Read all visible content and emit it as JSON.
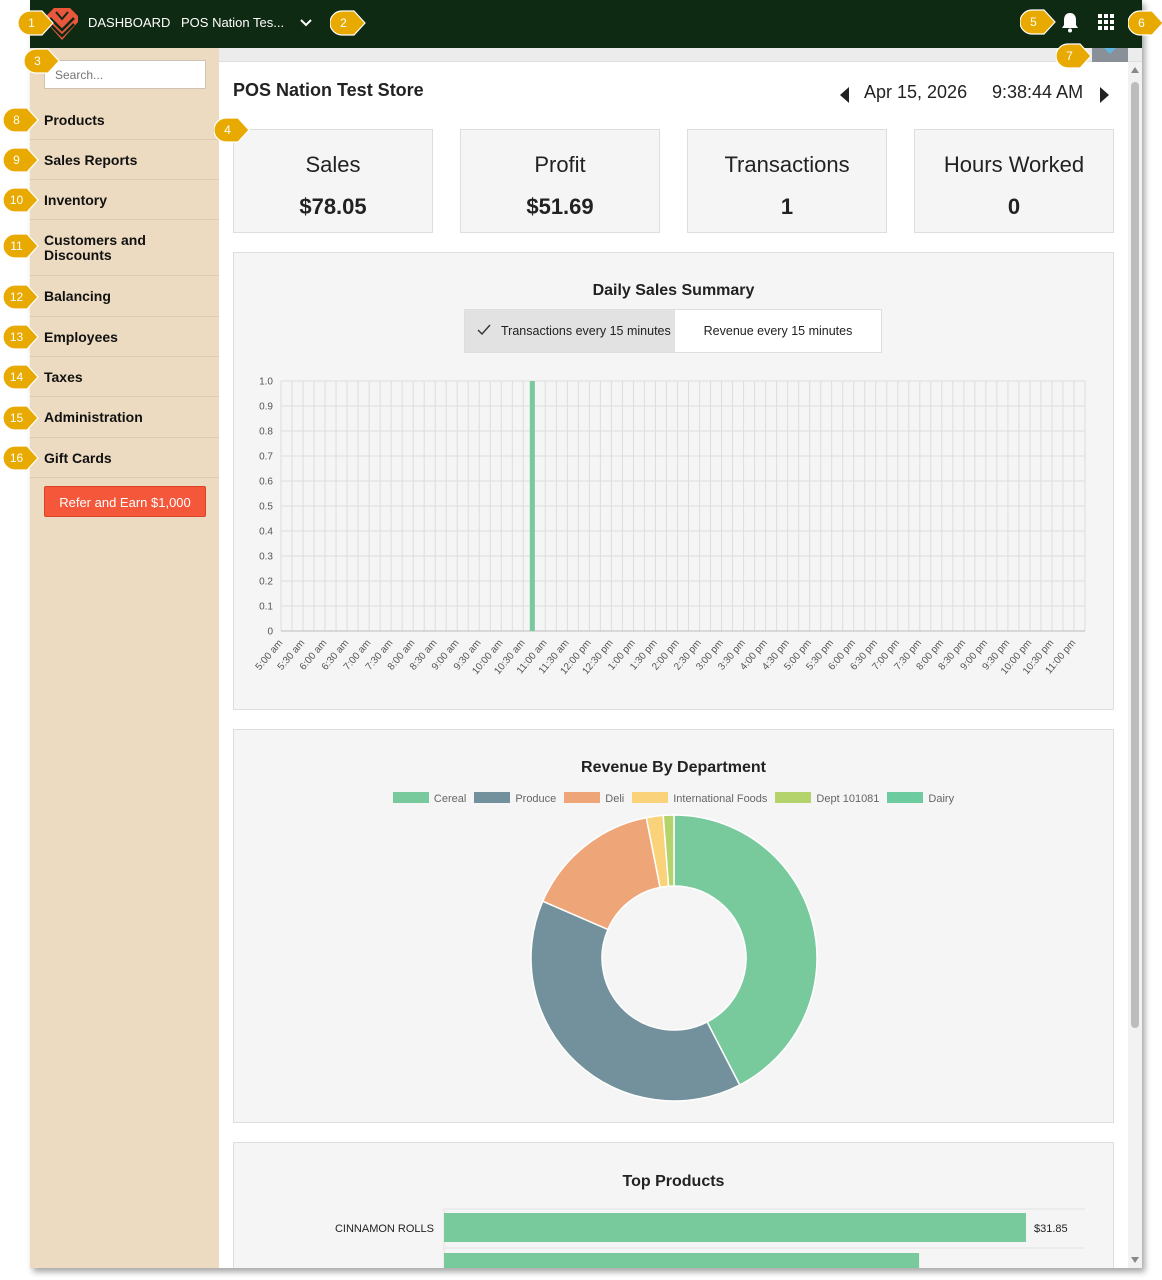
{
  "topbar": {
    "dashboard_label": "DASHBOARD",
    "store_selector": "POS Nation Tes...",
    "bg_color": "#0e2a12"
  },
  "sidebar": {
    "search_placeholder": "Search...",
    "items": [
      {
        "label": "Products"
      },
      {
        "label": "Sales Reports"
      },
      {
        "label": "Inventory"
      },
      {
        "label": "Customers and Discounts"
      },
      {
        "label": "Balancing"
      },
      {
        "label": "Employees"
      },
      {
        "label": "Taxes"
      },
      {
        "label": "Administration"
      },
      {
        "label": "Gift Cards"
      }
    ],
    "refer_button": "Refer and Earn $1,000",
    "bg_color": "#ecdbc0"
  },
  "header": {
    "store_name": "POS Nation Test Store",
    "date": "Apr 15, 2026",
    "time": "9:38:44 AM"
  },
  "stats": [
    {
      "label": "Sales",
      "value": "$78.05"
    },
    {
      "label": "Profit",
      "value": "$51.69"
    },
    {
      "label": "Transactions",
      "value": "1"
    },
    {
      "label": "Hours Worked",
      "value": "0"
    }
  ],
  "daily_sales": {
    "title": "Daily Sales Summary",
    "toggle_transactions": "Transactions every 15 minutes",
    "toggle_revenue": "Revenue every 15 minutes",
    "selected": "transactions"
  },
  "revenue_by_department": {
    "title": "Revenue By Department"
  },
  "top_products": {
    "title": "Top Products"
  },
  "callouts": [
    "1",
    "2",
    "3",
    "4",
    "5",
    "6",
    "7",
    "8",
    "9",
    "10",
    "11",
    "12",
    "13",
    "14",
    "15",
    "16"
  ],
  "colors": {
    "accent_green": "#78c99b",
    "callout_gold": "#e8a900",
    "refer_red": "#f4573a"
  },
  "chart_data": [
    {
      "type": "bar",
      "title": "Daily Sales Summary",
      "xlabel": "",
      "ylabel": "",
      "ylim": [
        0,
        1.0
      ],
      "y_ticks": [
        "0",
        "0.1",
        "0.2",
        "0.3",
        "0.4",
        "0.5",
        "0.6",
        "0.7",
        "0.8",
        "0.9",
        "1.0"
      ],
      "categories": [
        "5:00 am",
        "5:30 am",
        "6:00 am",
        "6:30 am",
        "7:00 am",
        "7:30 am",
        "8:00 am",
        "8:30 am",
        "9:00 am",
        "9:30 am",
        "10:00 am",
        "10:30 am",
        "11:00 am",
        "11:30 am",
        "12:00 pm",
        "12:30 pm",
        "1:00 pm",
        "1:30 pm",
        "2:00 pm",
        "2:30 pm",
        "3:00 pm",
        "3:30 pm",
        "4:00 pm",
        "4:30 pm",
        "5:00 pm",
        "5:30 pm",
        "6:00 pm",
        "6:30 pm",
        "7:00 pm",
        "7:30 pm",
        "8:00 pm",
        "8:30 pm",
        "9:00 pm",
        "9:30 pm",
        "10:00 pm",
        "10:30 pm",
        "11:00 pm"
      ],
      "values": [
        0,
        0,
        0,
        0,
        0,
        0,
        0,
        0,
        0,
        0,
        0,
        1,
        0,
        0,
        0,
        0,
        0,
        0,
        0,
        0,
        0,
        0,
        0,
        0,
        0,
        0,
        0,
        0,
        0,
        0,
        0,
        0,
        0,
        0,
        0,
        0,
        0
      ],
      "grid": true,
      "color": "#78c99b"
    },
    {
      "type": "pie",
      "donut": true,
      "title": "Revenue By Department",
      "legend_position": "top",
      "labels": [
        "Cereal",
        "Produce",
        "Deli",
        "International Foods",
        "Dept 101081",
        "Dairy"
      ],
      "values": [
        42.4,
        39.1,
        15.4,
        1.9,
        1.2,
        0.0
      ],
      "colors": [
        "#78c99b",
        "#73919c",
        "#eea577",
        "#fad27a",
        "#b5d36d",
        "#6ccb9f"
      ]
    },
    {
      "type": "bar",
      "orientation": "horizontal",
      "title": "Top Products",
      "categories": [
        "CINNAMON ROLLS"
      ],
      "values": [
        31.85
      ],
      "value_labels": [
        "$31.85"
      ],
      "partial_bar_value": 26.0,
      "color": "#78c99b"
    }
  ]
}
